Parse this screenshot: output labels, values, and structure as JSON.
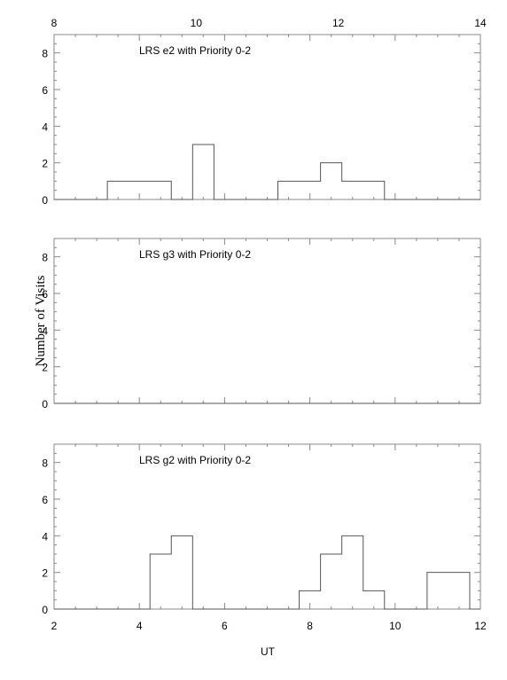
{
  "chart_data": [
    {
      "type": "histogram",
      "title": "LRS e2 with Priority 0-2",
      "top_axis_label": "",
      "top_ticks": [
        "8",
        "10",
        "12",
        "14"
      ],
      "xlim": [
        2,
        12
      ],
      "ylim": [
        0,
        9
      ],
      "y_ticks": [
        "0",
        "2",
        "4",
        "6",
        "8"
      ],
      "x_tick_values": [
        2,
        4,
        6,
        8,
        10,
        12
      ],
      "bins": [
        {
          "x0": 3.25,
          "x1": 4.75,
          "value": 1
        },
        {
          "x0": 5.25,
          "x1": 5.75,
          "value": 3
        },
        {
          "x0": 7.25,
          "x1": 8.25,
          "value": 1
        },
        {
          "x0": 8.25,
          "x1": 8.75,
          "value": 2
        },
        {
          "x0": 8.75,
          "x1": 9.75,
          "value": 1
        }
      ],
      "grid": false
    },
    {
      "type": "histogram",
      "title": "LRS g3 with Priority 0-2",
      "xlim": [
        2,
        12
      ],
      "ylim": [
        0,
        9
      ],
      "y_ticks": [
        "0",
        "2",
        "4",
        "6",
        "8"
      ],
      "x_tick_values": [
        2,
        4,
        6,
        8,
        10,
        12
      ],
      "bins": [],
      "grid": false
    },
    {
      "type": "histogram",
      "title": "LRS g2 with Priority 0-2",
      "xlim": [
        2,
        12
      ],
      "ylim": [
        0,
        9
      ],
      "y_ticks": [
        "0",
        "2",
        "4",
        "6",
        "8"
      ],
      "x_tick_values": [
        2,
        4,
        6,
        8,
        10,
        12
      ],
      "x_tick_labels": [
        "2",
        "4",
        "6",
        "8",
        "10",
        "12"
      ],
      "bins": [
        {
          "x0": 4.25,
          "x1": 4.75,
          "value": 3
        },
        {
          "x0": 4.75,
          "x1": 5.25,
          "value": 4
        },
        {
          "x0": 7.75,
          "x1": 8.25,
          "value": 1
        },
        {
          "x0": 8.25,
          "x1": 8.75,
          "value": 3
        },
        {
          "x0": 8.75,
          "x1": 9.25,
          "value": 4
        },
        {
          "x0": 9.25,
          "x1": 9.75,
          "value": 1
        },
        {
          "x0": 10.75,
          "x1": 11.75,
          "value": 2
        }
      ],
      "grid": false
    }
  ],
  "figure": {
    "xlabel": "UT",
    "ylabel": "Number of Visits",
    "line_color": "#555555",
    "axis_color": "#888888"
  }
}
